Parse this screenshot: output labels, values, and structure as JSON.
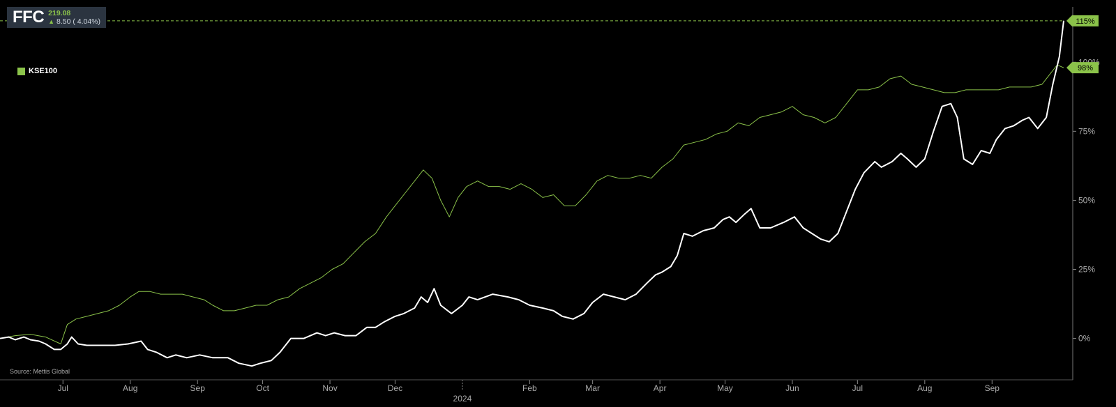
{
  "header": {
    "ticker": "FFC",
    "price": "219.08",
    "change": "8.50 ( 4.04%)",
    "arrow": "▲"
  },
  "legend": {
    "label": "KSE100",
    "color": "#8bc34a"
  },
  "source": "Source: Mettis Global",
  "colors": {
    "primary": "#ffffff",
    "benchmark": "#8bc34a",
    "tag_text": "#000000"
  },
  "chart_data": {
    "type": "line",
    "y_unit": "percent change",
    "ylim": [
      -15,
      120
    ],
    "y_ticks": [
      "0%",
      "25%",
      "50%",
      "75%",
      "100%"
    ],
    "y_tick_values": [
      0,
      25,
      50,
      75,
      100
    ],
    "x_labels": [
      "Jul",
      "Aug",
      "Sep",
      "Oct",
      "Nov",
      "Dec",
      "2024",
      "Feb",
      "Mar",
      "Apr",
      "May",
      "Jun",
      "Jul",
      "Aug",
      "Sep"
    ],
    "x_label_dates": [
      "2023-07-01",
      "2023-08-01",
      "2023-09-01",
      "2023-10-01",
      "2023-11-01",
      "2023-12-01",
      "2024-01-01",
      "2024-02-01",
      "2024-03-01",
      "2024-04-01",
      "2024-05-01",
      "2024-06-01",
      "2024-07-01",
      "2024-08-01",
      "2024-09-01"
    ],
    "series": [
      {
        "name": "FFC",
        "color": "#ffffff",
        "last_label": "115%",
        "points": [
          [
            "2023-06-02",
            0
          ],
          [
            "2023-06-06",
            0.5
          ],
          [
            "2023-06-09",
            -0.5
          ],
          [
            "2023-06-13",
            0.5
          ],
          [
            "2023-06-16",
            -0.5
          ],
          [
            "2023-06-20",
            -1
          ],
          [
            "2023-06-23",
            -2
          ],
          [
            "2023-06-27",
            -4
          ],
          [
            "2023-06-30",
            -4
          ],
          [
            "2023-07-03",
            -2
          ],
          [
            "2023-07-05",
            0.5
          ],
          [
            "2023-07-08",
            -2
          ],
          [
            "2023-07-12",
            -2.5
          ],
          [
            "2023-07-18",
            -2.5
          ],
          [
            "2023-07-25",
            -2.5
          ],
          [
            "2023-07-31",
            -2
          ],
          [
            "2023-08-03",
            -1.5
          ],
          [
            "2023-08-06",
            -1
          ],
          [
            "2023-08-09",
            -4
          ],
          [
            "2023-08-13",
            -5
          ],
          [
            "2023-08-18",
            -7
          ],
          [
            "2023-08-22",
            -6
          ],
          [
            "2023-08-27",
            -7
          ],
          [
            "2023-09-02",
            -6
          ],
          [
            "2023-09-08",
            -7
          ],
          [
            "2023-09-15",
            -7
          ],
          [
            "2023-09-20",
            -9
          ],
          [
            "2023-09-26",
            -10
          ],
          [
            "2023-09-30",
            -9
          ],
          [
            "2023-10-05",
            -8
          ],
          [
            "2023-10-09",
            -5
          ],
          [
            "2023-10-14",
            0
          ],
          [
            "2023-10-20",
            0
          ],
          [
            "2023-10-26",
            2
          ],
          [
            "2023-10-30",
            1
          ],
          [
            "2023-11-03",
            2
          ],
          [
            "2023-11-08",
            1
          ],
          [
            "2023-11-13",
            1
          ],
          [
            "2023-11-18",
            4
          ],
          [
            "2023-11-22",
            4
          ],
          [
            "2023-11-26",
            6
          ],
          [
            "2023-12-01",
            8
          ],
          [
            "2023-12-05",
            9
          ],
          [
            "2023-12-10",
            11
          ],
          [
            "2023-12-13",
            15
          ],
          [
            "2023-12-16",
            13
          ],
          [
            "2023-12-19",
            18
          ],
          [
            "2023-12-22",
            12
          ],
          [
            "2023-12-27",
            9
          ],
          [
            "2024-01-01",
            12
          ],
          [
            "2024-01-04",
            15
          ],
          [
            "2024-01-08",
            14
          ],
          [
            "2024-01-15",
            16
          ],
          [
            "2024-01-22",
            15
          ],
          [
            "2024-01-27",
            14
          ],
          [
            "2024-02-01",
            12
          ],
          [
            "2024-02-07",
            11
          ],
          [
            "2024-02-12",
            10
          ],
          [
            "2024-02-16",
            8
          ],
          [
            "2024-02-21",
            7
          ],
          [
            "2024-02-26",
            9
          ],
          [
            "2024-03-01",
            13
          ],
          [
            "2024-03-06",
            16
          ],
          [
            "2024-03-11",
            15
          ],
          [
            "2024-03-16",
            14
          ],
          [
            "2024-03-21",
            16
          ],
          [
            "2024-03-26",
            20
          ],
          [
            "2024-03-30",
            23
          ],
          [
            "2024-04-02",
            24
          ],
          [
            "2024-04-06",
            26
          ],
          [
            "2024-04-09",
            30
          ],
          [
            "2024-04-12",
            38
          ],
          [
            "2024-04-16",
            37
          ],
          [
            "2024-04-21",
            39
          ],
          [
            "2024-04-26",
            40
          ],
          [
            "2024-04-30",
            43
          ],
          [
            "2024-05-03",
            44
          ],
          [
            "2024-05-06",
            42
          ],
          [
            "2024-05-10",
            45
          ],
          [
            "2024-05-13",
            47
          ],
          [
            "2024-05-17",
            40
          ],
          [
            "2024-05-22",
            40
          ],
          [
            "2024-05-28",
            42
          ],
          [
            "2024-06-02",
            44
          ],
          [
            "2024-06-06",
            40
          ],
          [
            "2024-06-10",
            38
          ],
          [
            "2024-06-14",
            36
          ],
          [
            "2024-06-18",
            35
          ],
          [
            "2024-06-22",
            38
          ],
          [
            "2024-06-26",
            46
          ],
          [
            "2024-06-30",
            54
          ],
          [
            "2024-07-04",
            60
          ],
          [
            "2024-07-09",
            64
          ],
          [
            "2024-07-12",
            62
          ],
          [
            "2024-07-17",
            64
          ],
          [
            "2024-07-21",
            67
          ],
          [
            "2024-07-24",
            65
          ],
          [
            "2024-07-28",
            62
          ],
          [
            "2024-08-01",
            65
          ],
          [
            "2024-08-05",
            75
          ],
          [
            "2024-08-09",
            84
          ],
          [
            "2024-08-13",
            85
          ],
          [
            "2024-08-16",
            80
          ],
          [
            "2024-08-19",
            65
          ],
          [
            "2024-08-23",
            63
          ],
          [
            "2024-08-27",
            68
          ],
          [
            "2024-08-31",
            67
          ],
          [
            "2024-09-03",
            72
          ],
          [
            "2024-09-07",
            76
          ],
          [
            "2024-09-11",
            77
          ],
          [
            "2024-09-15",
            79
          ],
          [
            "2024-09-18",
            80
          ],
          [
            "2024-09-22",
            76
          ],
          [
            "2024-09-26",
            80
          ],
          [
            "2024-09-29",
            92
          ],
          [
            "2024-10-02",
            102
          ],
          [
            "2024-10-04",
            115
          ]
        ]
      },
      {
        "name": "KSE100",
        "color": "#8bc34a",
        "last_label": "98%",
        "points": [
          [
            "2023-06-02",
            0
          ],
          [
            "2023-06-09",
            1
          ],
          [
            "2023-06-16",
            1.5
          ],
          [
            "2023-06-23",
            0.5
          ],
          [
            "2023-06-30",
            -2
          ],
          [
            "2023-07-03",
            5
          ],
          [
            "2023-07-07",
            7
          ],
          [
            "2023-07-12",
            8
          ],
          [
            "2023-07-17",
            9
          ],
          [
            "2023-07-22",
            10
          ],
          [
            "2023-07-27",
            12
          ],
          [
            "2023-08-01",
            15
          ],
          [
            "2023-08-05",
            17
          ],
          [
            "2023-08-10",
            17
          ],
          [
            "2023-08-15",
            16
          ],
          [
            "2023-08-20",
            16
          ],
          [
            "2023-08-25",
            16
          ],
          [
            "2023-08-30",
            15
          ],
          [
            "2023-09-04",
            14
          ],
          [
            "2023-09-08",
            12
          ],
          [
            "2023-09-13",
            10
          ],
          [
            "2023-09-18",
            10
          ],
          [
            "2023-09-23",
            11
          ],
          [
            "2023-09-28",
            12
          ],
          [
            "2023-10-03",
            12
          ],
          [
            "2023-10-08",
            14
          ],
          [
            "2023-10-13",
            15
          ],
          [
            "2023-10-18",
            18
          ],
          [
            "2023-10-23",
            20
          ],
          [
            "2023-10-28",
            22
          ],
          [
            "2023-11-02",
            25
          ],
          [
            "2023-11-07",
            27
          ],
          [
            "2023-11-12",
            31
          ],
          [
            "2023-11-17",
            35
          ],
          [
            "2023-11-22",
            38
          ],
          [
            "2023-11-27",
            44
          ],
          [
            "2023-12-01",
            48
          ],
          [
            "2023-12-06",
            53
          ],
          [
            "2023-12-11",
            58
          ],
          [
            "2023-12-14",
            61
          ],
          [
            "2023-12-18",
            58
          ],
          [
            "2023-12-22",
            50
          ],
          [
            "2023-12-26",
            44
          ],
          [
            "2023-12-30",
            51
          ],
          [
            "2024-01-03",
            55
          ],
          [
            "2024-01-08",
            57
          ],
          [
            "2024-01-13",
            55
          ],
          [
            "2024-01-18",
            55
          ],
          [
            "2024-01-23",
            54
          ],
          [
            "2024-01-28",
            56
          ],
          [
            "2024-02-02",
            54
          ],
          [
            "2024-02-07",
            51
          ],
          [
            "2024-02-12",
            52
          ],
          [
            "2024-02-17",
            48
          ],
          [
            "2024-02-22",
            48
          ],
          [
            "2024-02-27",
            52
          ],
          [
            "2024-03-03",
            57
          ],
          [
            "2024-03-08",
            59
          ],
          [
            "2024-03-13",
            58
          ],
          [
            "2024-03-18",
            58
          ],
          [
            "2024-03-23",
            59
          ],
          [
            "2024-03-28",
            58
          ],
          [
            "2024-04-02",
            62
          ],
          [
            "2024-04-07",
            65
          ],
          [
            "2024-04-12",
            70
          ],
          [
            "2024-04-17",
            71
          ],
          [
            "2024-04-22",
            72
          ],
          [
            "2024-04-27",
            74
          ],
          [
            "2024-05-02",
            75
          ],
          [
            "2024-05-07",
            78
          ],
          [
            "2024-05-12",
            77
          ],
          [
            "2024-05-17",
            80
          ],
          [
            "2024-05-22",
            81
          ],
          [
            "2024-05-27",
            82
          ],
          [
            "2024-06-01",
            84
          ],
          [
            "2024-06-06",
            81
          ],
          [
            "2024-06-11",
            80
          ],
          [
            "2024-06-16",
            78
          ],
          [
            "2024-06-21",
            80
          ],
          [
            "2024-06-26",
            85
          ],
          [
            "2024-07-01",
            90
          ],
          [
            "2024-07-06",
            90
          ],
          [
            "2024-07-11",
            91
          ],
          [
            "2024-07-16",
            94
          ],
          [
            "2024-07-21",
            95
          ],
          [
            "2024-07-26",
            92
          ],
          [
            "2024-07-31",
            91
          ],
          [
            "2024-08-05",
            90
          ],
          [
            "2024-08-10",
            89
          ],
          [
            "2024-08-15",
            89
          ],
          [
            "2024-08-20",
            90
          ],
          [
            "2024-08-25",
            90
          ],
          [
            "2024-08-30",
            90
          ],
          [
            "2024-09-04",
            90
          ],
          [
            "2024-09-09",
            91
          ],
          [
            "2024-09-14",
            91
          ],
          [
            "2024-09-19",
            91
          ],
          [
            "2024-09-24",
            92
          ],
          [
            "2024-09-28",
            96
          ],
          [
            "2024-10-01",
            99
          ],
          [
            "2024-10-04",
            98
          ]
        ]
      }
    ],
    "reference_line": {
      "value": 115,
      "style": "dashed"
    },
    "grid": false,
    "legend_position": "top-left"
  }
}
